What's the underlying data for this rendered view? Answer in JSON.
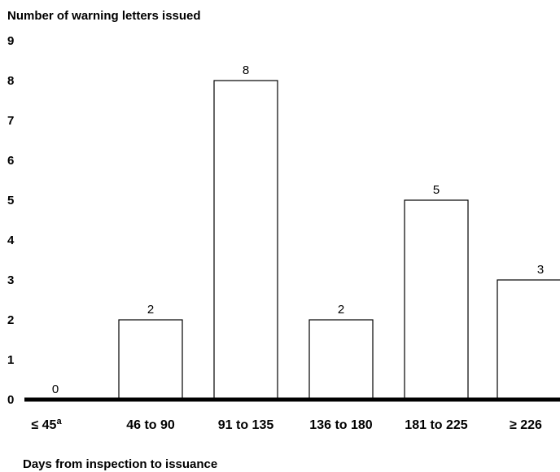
{
  "chart_data": {
    "type": "bar",
    "ylabel": "Number of warning letters issued",
    "xlabel": "Days from inspection to issuance",
    "ylim": [
      0,
      9
    ],
    "yticks": [
      0,
      1,
      2,
      3,
      4,
      5,
      6,
      7,
      8,
      9
    ],
    "categories": [
      {
        "label": "≤ 45",
        "sup": "a"
      },
      {
        "label": "46 to 90",
        "sup": ""
      },
      {
        "label": "91 to 135",
        "sup": ""
      },
      {
        "label": "136 to 180",
        "sup": ""
      },
      {
        "label": "181 to 225",
        "sup": ""
      },
      {
        "label": "≥ 226",
        "sup": ""
      }
    ],
    "values": [
      0,
      2,
      8,
      2,
      5,
      3
    ],
    "grid": false,
    "legend": "none",
    "colors": {
      "bar_fill": "#ffffff",
      "bar_stroke": "#000000",
      "axis": "#000000"
    }
  }
}
